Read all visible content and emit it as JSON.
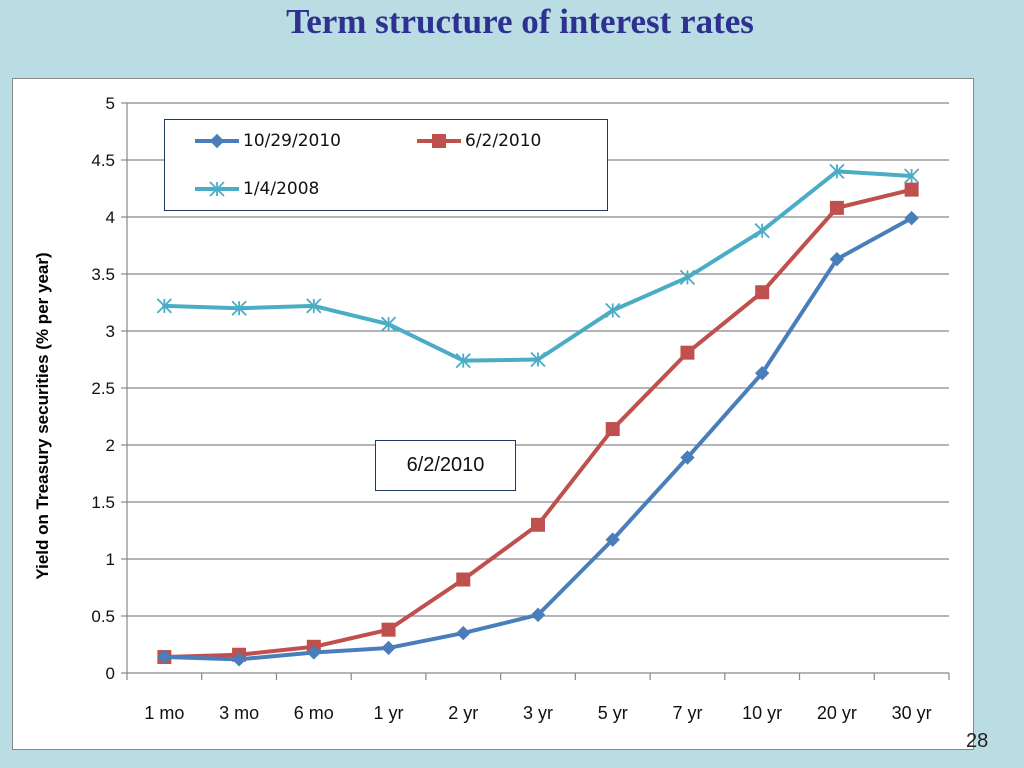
{
  "slide": {
    "title": "Term structure of interest rates",
    "page_number": "28"
  },
  "chart_data": {
    "type": "line",
    "title": "",
    "xlabel": "",
    "ylabel": "Yield on Treasury securities (% per year)",
    "categories": [
      "1 mo",
      "3 mo",
      "6 mo",
      "1 yr",
      "2 yr",
      "3 yr",
      "5 yr",
      "7 yr",
      "10 yr",
      "20 yr",
      "30 yr"
    ],
    "ylim": [
      0,
      5
    ],
    "yticks": [
      "0",
      "0.5",
      "1",
      "1.5",
      "2",
      "2.5",
      "3",
      "3.5",
      "4",
      "4.5",
      "5"
    ],
    "grid": "horizontal",
    "legend_position": "top-left",
    "annotation": "6/2/2010",
    "series": [
      {
        "name": "10/29/2010",
        "marker": "diamond",
        "color": "#4a7ebb",
        "values": [
          0.14,
          0.12,
          0.18,
          0.22,
          0.35,
          0.51,
          1.17,
          1.89,
          2.63,
          3.63,
          3.99
        ]
      },
      {
        "name": "6/2/2010",
        "marker": "square",
        "color": "#c0504d",
        "values": [
          0.14,
          0.16,
          0.23,
          0.38,
          0.82,
          1.3,
          2.14,
          2.81,
          3.34,
          4.08,
          4.24
        ]
      },
      {
        "name": "1/4/2008",
        "marker": "asterisk",
        "color": "#4bacc6",
        "values": [
          3.22,
          3.2,
          3.22,
          3.06,
          2.74,
          2.75,
          3.18,
          3.47,
          3.88,
          4.4,
          4.36
        ]
      }
    ]
  }
}
